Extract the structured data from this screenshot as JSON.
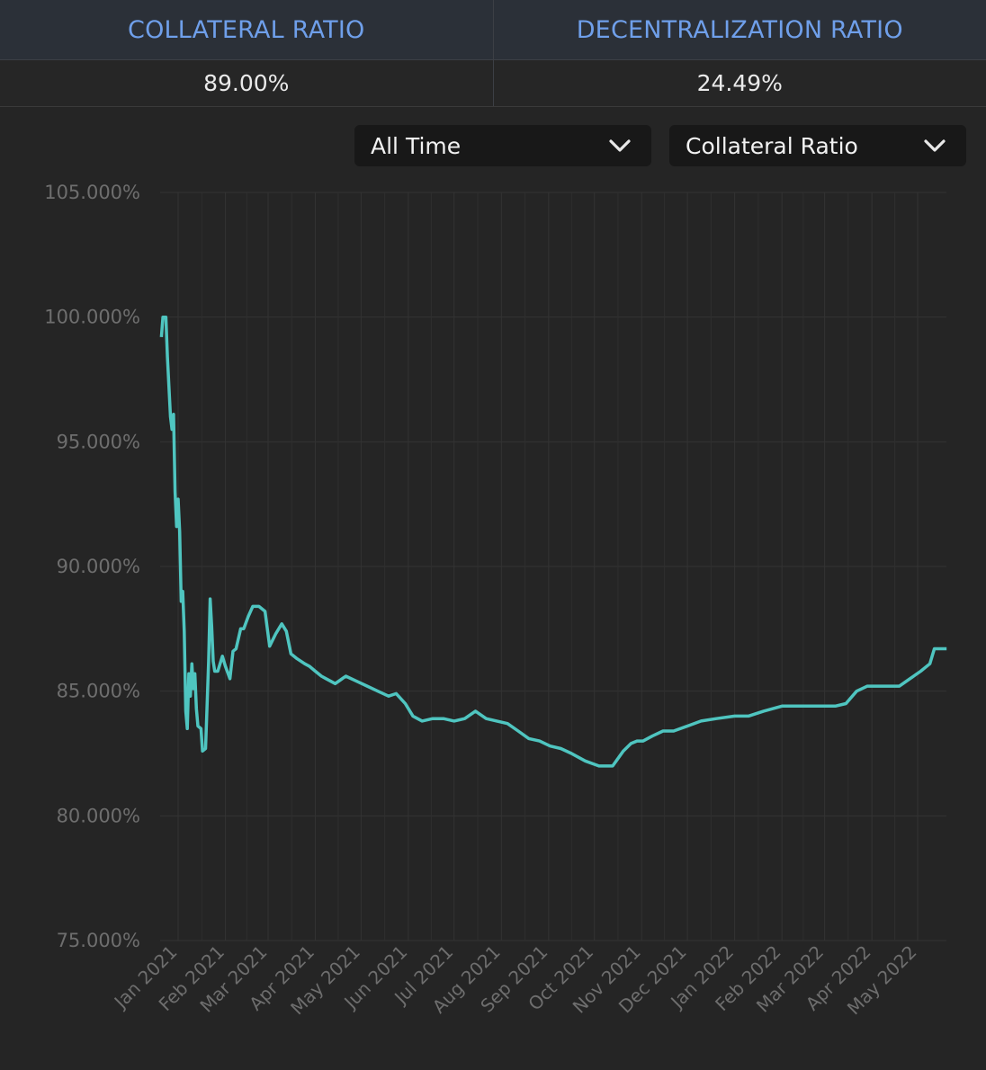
{
  "stats": {
    "headers": [
      "COLLATERAL RATIO",
      "DECENTRALIZATION RATIO"
    ],
    "values": [
      "89.00%",
      "24.49%"
    ]
  },
  "controls": {
    "range_label": "All Time",
    "metric_label": "Collateral Ratio"
  },
  "icons": {
    "dropdown": "chevron-down-icon"
  },
  "colors": {
    "line": "#4fc5c0",
    "header_text": "#6f9fea"
  },
  "chart_data": {
    "type": "line",
    "title": "",
    "xlabel": "",
    "ylabel": "",
    "ylim": [
      75,
      105
    ],
    "grid": true,
    "y_ticks": [
      "105.000%",
      "100.000%",
      "95.000%",
      "90.000%",
      "85.000%",
      "80.000%",
      "75.000%"
    ],
    "y_tick_values": [
      105,
      100,
      95,
      90,
      85,
      80,
      75
    ],
    "x_ticks": [
      "Jan 2021",
      "Feb 2021",
      "Mar 2021",
      "Apr 2021",
      "May 2021",
      "Jun 2021",
      "Jul 2021",
      "Aug 2021",
      "Sep 2021",
      "Oct 2021",
      "Nov 2021",
      "Dec 2021",
      "Jan 2022",
      "Feb 2022",
      "Mar 2022",
      "Apr 2022",
      "May 2022"
    ],
    "x_tick_dates": [
      "2021-01-01",
      "2021-02-01",
      "2021-03-01",
      "2021-04-01",
      "2021-05-01",
      "2021-06-01",
      "2021-07-01",
      "2021-08-01",
      "2021-09-01",
      "2021-10-01",
      "2021-11-01",
      "2021-12-01",
      "2022-01-01",
      "2022-02-01",
      "2022-03-01",
      "2022-04-01",
      "2022-05-01"
    ],
    "series": [
      {
        "x": [
          "2020-12-21",
          "2020-12-22",
          "2020-12-24",
          "2020-12-25",
          "2020-12-27",
          "2020-12-28",
          "2020-12-29",
          "2020-12-30",
          "2020-12-31",
          "2021-01-01",
          "2021-01-02",
          "2021-01-03",
          "2021-01-04",
          "2021-01-05",
          "2021-01-06",
          "2021-01-07",
          "2021-01-08",
          "2021-01-09",
          "2021-01-10",
          "2021-01-11",
          "2021-01-12",
          "2021-01-13",
          "2021-01-14",
          "2021-01-16",
          "2021-01-17",
          "2021-01-19",
          "2021-01-21",
          "2021-01-22",
          "2021-01-23",
          "2021-01-24",
          "2021-01-25",
          "2021-01-26",
          "2021-01-27",
          "2021-01-28",
          "2021-01-30",
          "2021-02-01",
          "2021-02-04",
          "2021-02-06",
          "2021-02-08",
          "2021-02-11",
          "2021-02-13",
          "2021-02-16",
          "2021-02-19",
          "2021-02-23",
          "2021-02-27",
          "2021-03-02",
          "2021-03-06",
          "2021-03-10",
          "2021-03-13",
          "2021-03-16",
          "2021-03-20",
          "2021-03-25",
          "2021-03-28",
          "2021-04-01",
          "2021-04-05",
          "2021-04-08",
          "2021-04-14",
          "2021-04-21",
          "2021-04-28",
          "2021-05-05",
          "2021-05-12",
          "2021-05-19",
          "2021-05-24",
          "2021-05-30",
          "2021-06-04",
          "2021-06-10",
          "2021-06-17",
          "2021-06-24",
          "2021-07-01",
          "2021-07-08",
          "2021-07-15",
          "2021-07-22",
          "2021-07-29",
          "2021-08-05",
          "2021-08-12",
          "2021-08-19",
          "2021-08-26",
          "2021-09-02",
          "2021-09-09",
          "2021-09-16",
          "2021-09-25",
          "2021-10-04",
          "2021-10-13",
          "2021-10-20",
          "2021-10-25",
          "2021-10-29",
          "2021-11-02",
          "2021-11-08",
          "2021-11-15",
          "2021-11-22",
          "2021-12-01",
          "2021-12-10",
          "2021-12-20",
          "2022-01-01",
          "2022-01-10",
          "2022-01-20",
          "2022-02-01",
          "2022-02-10",
          "2022-02-20",
          "2022-03-01",
          "2022-03-08",
          "2022-03-15",
          "2022-03-22",
          "2022-03-29",
          "2022-04-05",
          "2022-04-12",
          "2022-04-19",
          "2022-04-26",
          "2022-05-03",
          "2022-05-09",
          "2022-05-12",
          "2022-05-15",
          "2022-05-17",
          "2022-05-20"
        ],
        "y": [
          99.2,
          100.0,
          100.0,
          98.4,
          96.0,
          95.5,
          96.1,
          93.0,
          91.6,
          92.7,
          91.4,
          88.6,
          89.0,
          87.4,
          84.2,
          83.5,
          85.7,
          84.8,
          86.1,
          85.1,
          85.7,
          84.3,
          83.6,
          83.5,
          82.6,
          82.7,
          86.2,
          88.7,
          87.6,
          86.2,
          85.8,
          85.8,
          85.8,
          86.0,
          86.4,
          86.0,
          85.5,
          86.6,
          86.7,
          87.5,
          87.5,
          88.0,
          88.4,
          88.4,
          88.2,
          86.8,
          87.3,
          87.7,
          87.4,
          86.5,
          86.3,
          86.1,
          86.0,
          85.8,
          85.6,
          85.5,
          85.3,
          85.6,
          85.4,
          85.2,
          85.0,
          84.8,
          84.9,
          84.5,
          84.0,
          83.8,
          83.9,
          83.9,
          83.8,
          83.9,
          84.2,
          83.9,
          83.8,
          83.7,
          83.4,
          83.1,
          83.0,
          82.8,
          82.7,
          82.5,
          82.2,
          82.0,
          82.0,
          82.6,
          82.9,
          83.0,
          83.0,
          83.2,
          83.4,
          83.4,
          83.6,
          83.8,
          83.9,
          84.0,
          84.0,
          84.2,
          84.4,
          84.4,
          84.4,
          84.4,
          84.4,
          84.5,
          85.0,
          85.2,
          85.2,
          85.2,
          85.2,
          85.5,
          85.8,
          86.1,
          86.7,
          86.7,
          86.7,
          86.7
        ]
      }
    ]
  }
}
